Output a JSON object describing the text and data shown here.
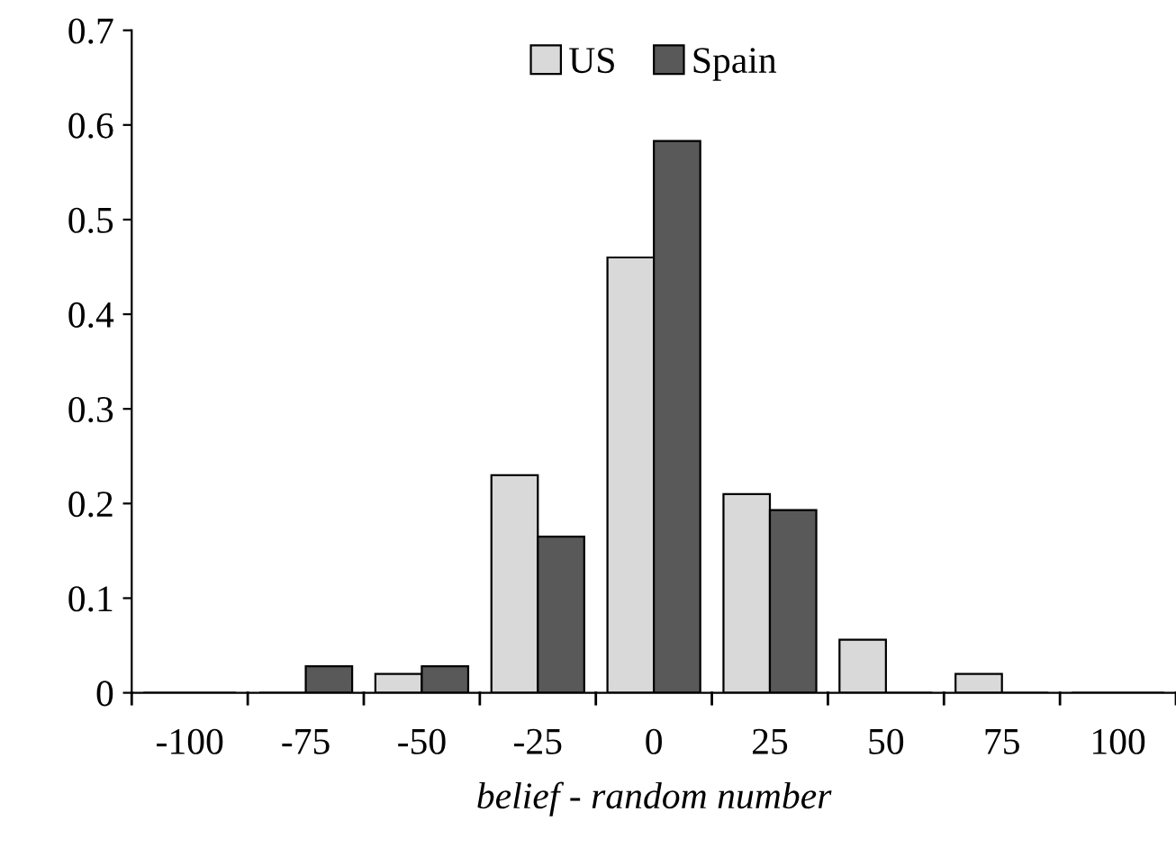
{
  "chart_data": {
    "type": "bar",
    "xlabel": "belief - random number",
    "categories": [
      "-100",
      "-75",
      "-50",
      "-25",
      "0",
      "25",
      "50",
      "75",
      "100"
    ],
    "series": [
      {
        "name": "US",
        "color": "#d9d9d9",
        "values": [
          0,
          0,
          0.02,
          0.23,
          0.46,
          0.21,
          0.056,
          0.02,
          0
        ]
      },
      {
        "name": "Spain",
        "color": "#595959",
        "values": [
          0,
          0.028,
          0.028,
          0.165,
          0.583,
          0.193,
          0,
          0,
          0
        ]
      }
    ],
    "ylim": [
      0,
      0.7
    ],
    "yticks": [
      0,
      0.1,
      0.2,
      0.3,
      0.4,
      0.5,
      0.6,
      0.7
    ],
    "grid": false,
    "legend": "top"
  }
}
